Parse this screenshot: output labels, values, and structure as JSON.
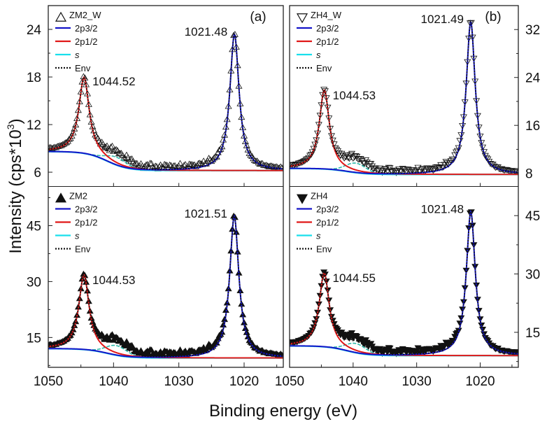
{
  "figure": {
    "ylabel_main": "Intensity (cps*10",
    "ylabel_exp": "3",
    "ylabel_close": ")",
    "xlabel": "Binding energy (eV)"
  },
  "chart_data": [
    {
      "type": "line",
      "panel": "top-left",
      "panel_label": "(a)",
      "sample_label": "ZM2_W",
      "marker": "open-up-triangle",
      "x_range": [
        1050,
        1014
      ],
      "ylim": [
        4.2,
        27.0
      ],
      "y_axis_side": "left",
      "y_ticks": [
        6,
        12,
        18,
        24
      ],
      "peak_labels": [
        {
          "text": "1021.48",
          "x": 1021.48
        },
        {
          "text": "1044.52",
          "x": 1044.52
        }
      ],
      "params": {
        "p1": 1021.48,
        "a1": 17.2,
        "w1": 0.85,
        "p2": 1044.52,
        "a2": 9.6,
        "w2": 0.95,
        "sat": 1.0,
        "bg_hi": 8.6,
        "bg_lo": 6.2,
        "env_off": 0.45,
        "noise": 0.5
      },
      "legend": [
        "ZM2_W",
        "2p3/2",
        "2p1/2",
        "s",
        "Env"
      ]
    },
    {
      "type": "line",
      "panel": "top-right",
      "panel_label": "(b)",
      "sample_label": "ZH4_W",
      "marker": "open-down-triangle",
      "x_range": [
        1050,
        1014
      ],
      "ylim": [
        5.8,
        36.0
      ],
      "y_axis_side": "right",
      "y_ticks": [
        8,
        16,
        24,
        32
      ],
      "peak_labels": [
        {
          "text": "1021.49",
          "x": 1021.49
        },
        {
          "text": "1044.53",
          "x": 1044.53
        }
      ],
      "params": {
        "p1": 1021.49,
        "a1": 25.5,
        "w1": 0.85,
        "p2": 1044.53,
        "a2": 13.2,
        "w2": 0.95,
        "sat": 1.6,
        "bg_hi": 8.8,
        "bg_lo": 7.8,
        "env_off": 0.6,
        "noise": 0.6
      },
      "legend": [
        "ZH4_W",
        "2p3/2",
        "2p1/2",
        "s",
        "Env"
      ]
    },
    {
      "type": "line",
      "panel": "bottom-left",
      "panel_label": "",
      "sample_label": "ZM2",
      "marker": "filled-up-triangle",
      "x_range": [
        1050,
        1014
      ],
      "ylim": [
        7.0,
        55.5
      ],
      "y_axis_side": "left",
      "y_ticks": [
        15,
        30,
        45
      ],
      "peak_labels": [
        {
          "text": "1021.51",
          "x": 1021.51
        },
        {
          "text": "1044.53",
          "x": 1044.53
        }
      ],
      "params": {
        "p1": 1021.51,
        "a1": 38.0,
        "w1": 0.85,
        "p2": 1044.53,
        "a2": 20.0,
        "w2": 0.95,
        "sat": 2.6,
        "bg_hi": 12.0,
        "bg_lo": 9.5,
        "env_off": 1.2,
        "noise": 1.0
      },
      "legend": [
        "ZM2",
        "2p3/2",
        "2p1/2",
        "s",
        "Env"
      ]
    },
    {
      "type": "line",
      "panel": "bottom-right",
      "panel_label": "",
      "sample_label": "ZH4",
      "marker": "filled-down-triangle",
      "x_range": [
        1050,
        1014
      ],
      "ylim": [
        6.0,
        52.5
      ],
      "y_axis_side": "right",
      "y_ticks": [
        15,
        30,
        45
      ],
      "peak_labels": [
        {
          "text": "1021.48",
          "x": 1021.48
        },
        {
          "text": "1044.55",
          "x": 1044.55
        }
      ],
      "params": {
        "p1": 1021.48,
        "a1": 37.0,
        "w1": 0.85,
        "p2": 1044.55,
        "a2": 19.0,
        "w2": 0.95,
        "sat": 2.4,
        "bg_hi": 11.5,
        "bg_lo": 9.0,
        "env_off": 1.1,
        "noise": 1.0
      },
      "legend": [
        "ZH4",
        "2p3/2",
        "2p1/2",
        "s",
        "Env"
      ]
    }
  ],
  "x_ticks": [
    1050,
    1040,
    1030,
    1020
  ],
  "series_colors": {
    "2p3/2": "#1414c8",
    "2p1/2": "#e01818",
    "s": "#19dfec",
    "Env": "#111111",
    "markers": "#111111"
  }
}
